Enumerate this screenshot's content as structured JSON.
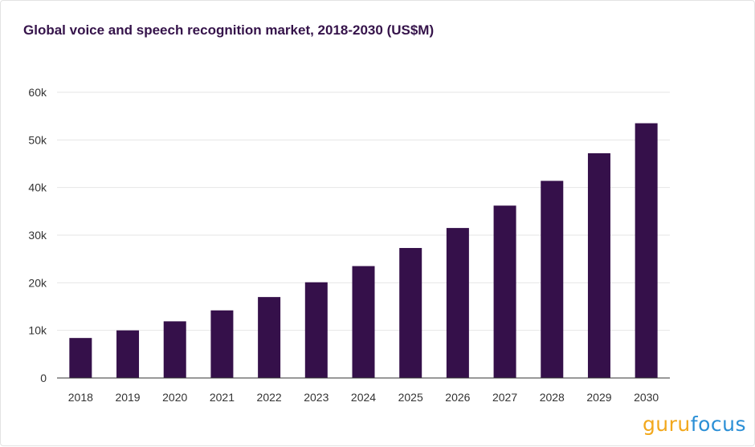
{
  "chart_data": {
    "type": "bar",
    "title": "Global voice and speech recognition market, 2018-2030 (US$M)",
    "categories": [
      "2018",
      "2019",
      "2020",
      "2021",
      "2022",
      "2023",
      "2024",
      "2025",
      "2026",
      "2027",
      "2028",
      "2029",
      "2030"
    ],
    "values": [
      8400,
      10000,
      11900,
      14200,
      17000,
      20100,
      23500,
      27300,
      31500,
      36200,
      41400,
      47200,
      53500
    ],
    "ylim": [
      0,
      60000
    ],
    "yticks": [
      0,
      10000,
      20000,
      30000,
      40000,
      50000,
      60000
    ],
    "ytick_labels": [
      "0",
      "10k",
      "20k",
      "30k",
      "40k",
      "50k",
      "60k"
    ],
    "xlabel": "",
    "ylabel": "",
    "bar_color": "#35104a",
    "grid": true
  },
  "watermark": {
    "part1": "guru",
    "part2": "focus",
    "color1": "#f2a81d",
    "color2": "#2b8fd6"
  },
  "colors": {
    "title": "#35134a",
    "grid": "#e6e6e6",
    "axis": "#333333"
  }
}
